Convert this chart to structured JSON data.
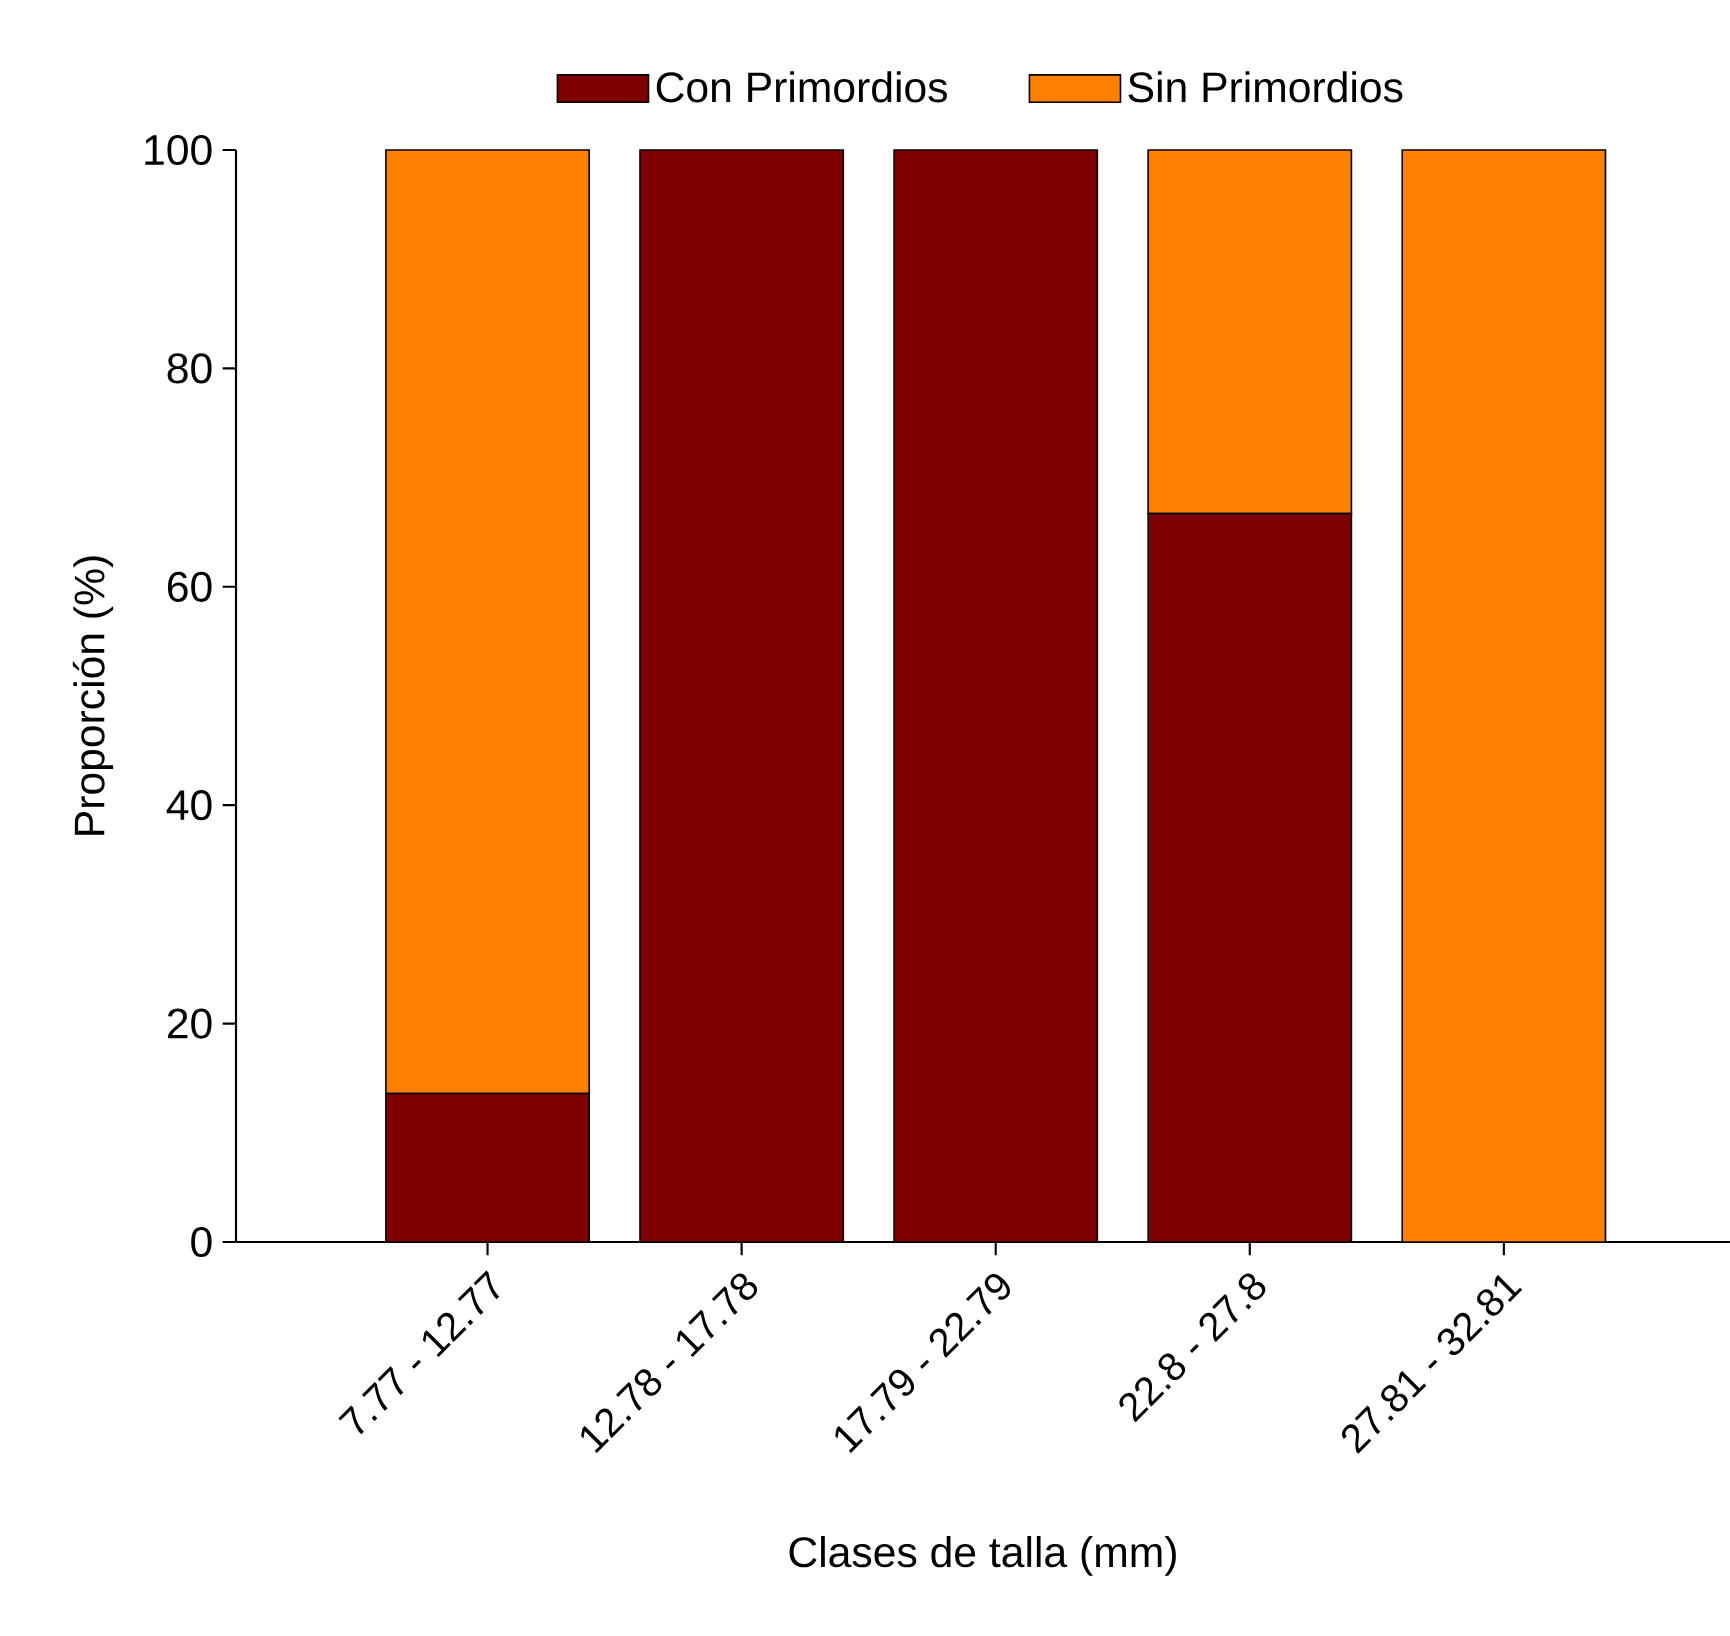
{
  "chart_data": {
    "type": "bar",
    "stacked": true,
    "xlabel": "Clases de talla (mm)",
    "ylabel": "Proporción (%)",
    "categories": [
      "7.77 - 12.77",
      "12.78 - 17.78",
      "17.79 - 22.79",
      "22.8 - 27.8",
      "27.81 - 32.81"
    ],
    "series": [
      {
        "name": "Con Primordios",
        "color": "#7f0000",
        "values": [
          13.6,
          100,
          100,
          66.7,
          0
        ]
      },
      {
        "name": "Sin Primordios",
        "color": "#ff8000",
        "values": [
          86.4,
          0,
          0,
          33.3,
          100
        ]
      }
    ],
    "ylim": [
      0,
      100
    ],
    "yticks": [
      0,
      20,
      40,
      60,
      80,
      100
    ],
    "legend": "top",
    "grid": false
  }
}
